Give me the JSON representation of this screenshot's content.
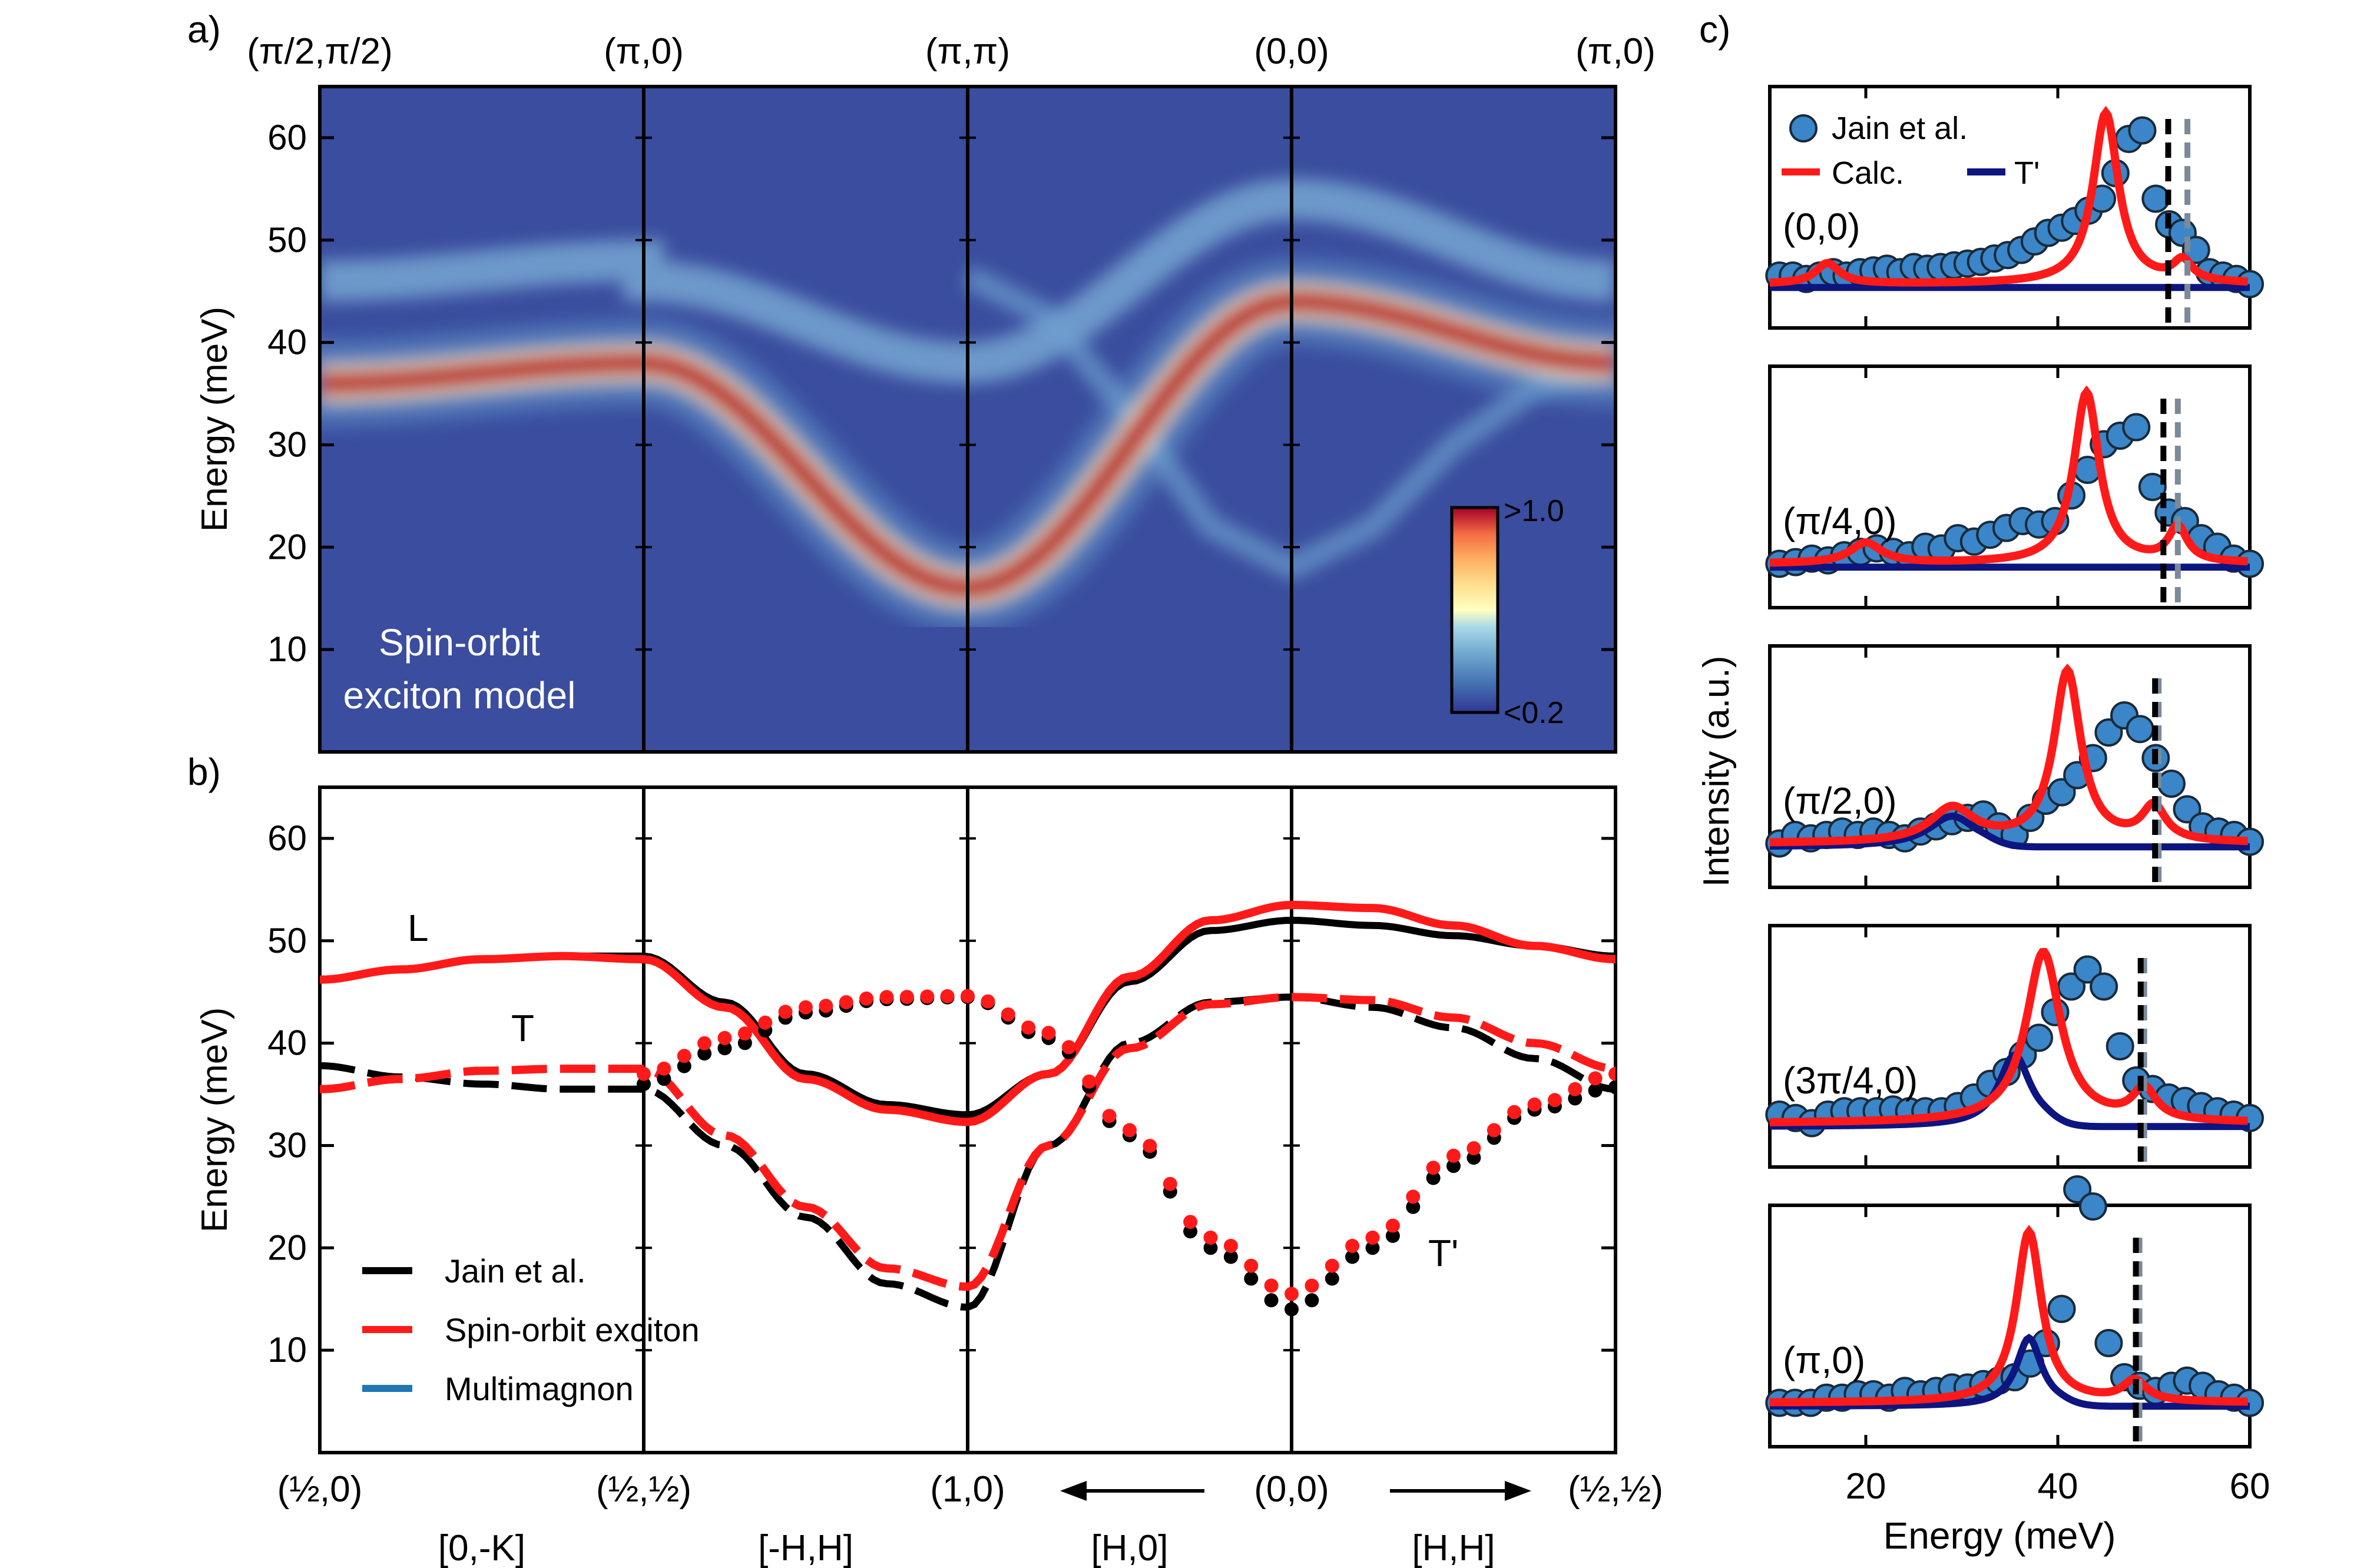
{
  "panel_labels": {
    "a": "a)",
    "b": "b)",
    "c": "c)"
  },
  "colors": {
    "jain": "#000000",
    "calc": "#ff1a1a",
    "multimagnon": "#1f77b4",
    "tprime": "#0d1580",
    "marker_fill": "#3a86c8",
    "dash_dark": "#000000",
    "dash_light": "#7a8a9a",
    "map_low": "#313695",
    "map_high": "#a50026"
  },
  "chart_data": [
    {
      "id": "a",
      "type": "heatmap",
      "ylabel": "Energy (meV)",
      "ylim": [
        0,
        65
      ],
      "yticks": [
        10,
        20,
        30,
        40,
        50,
        60
      ],
      "top_labels": [
        "(π/2,π/2)",
        "(π,0)",
        "(π,π)",
        "(0,0)",
        "(π,0)"
      ],
      "annotation": [
        "Spin-orbit",
        "exciton model"
      ],
      "colorbar": {
        "max_label": ">1.0",
        "min_label": "<0.2",
        "range": [
          0.2,
          1.0
        ]
      },
      "segments": [
        {
          "name": "(π/2,π/2)→(π,0)",
          "main_energy": [
            36,
            38
          ],
          "upper_energy": [
            46,
            48
          ]
        },
        {
          "name": "(π,0)→(π,π)",
          "main_energy": [
            38,
            16
          ],
          "upper_energy": [
            46,
            38
          ]
        },
        {
          "name": "(π,π)→(0,0)",
          "main_energy": [
            16,
            44
          ],
          "upper_energy": [
            38,
            54
          ]
        },
        {
          "name": "(0,0)→(π,0)",
          "main_energy": [
            44,
            38
          ],
          "upper_energy": [
            54,
            46
          ]
        }
      ]
    },
    {
      "id": "b",
      "type": "line",
      "ylabel": "Energy (meV)",
      "ylim": [
        0,
        65
      ],
      "yticks": [
        10,
        20,
        30,
        40,
        50,
        60
      ],
      "x_labels": [
        "(½,0)",
        "(½,½)",
        "(1,0)",
        "(0,0)",
        "(½,½)"
      ],
      "direction_labels": [
        "[0,-K]",
        "[-H,H]",
        "[H,0]",
        "[H,H]"
      ],
      "mode_labels": {
        "L": "L",
        "T": "T",
        "T'": "T'"
      },
      "legend": [
        {
          "name": "Jain et al.",
          "color": "#000000"
        },
        {
          "name": "Spin-orbit exciton",
          "color": "#ff1a1a"
        },
        {
          "name": "Multimagnon",
          "color": "#1f77b4"
        }
      ],
      "x": [
        0,
        0.25,
        0.5,
        0.75,
        1,
        1.25,
        1.5,
        1.75,
        2,
        2.25,
        2.5,
        2.75,
        3,
        3.25,
        3.5,
        3.75,
        4
      ],
      "series": [
        {
          "name": "Jain L",
          "style": "solid",
          "color": "#000000",
          "values": [
            46.2,
            47.2,
            48.2,
            48.5,
            48.5,
            44.0,
            37.0,
            34.0,
            33.0,
            37.0,
            46.0,
            51.0,
            52.0,
            51.5,
            50.5,
            49.5,
            48.5
          ]
        },
        {
          "name": "Exciton L",
          "style": "solid",
          "color": "#ff1a1a",
          "values": [
            46.2,
            47.2,
            48.2,
            48.5,
            48.2,
            43.5,
            36.5,
            33.5,
            32.3,
            37.0,
            46.5,
            52.0,
            53.5,
            53.2,
            51.5,
            49.5,
            48.2
          ]
        },
        {
          "name": "Jain T",
          "style": "dashed",
          "color": "#000000",
          "values": [
            37.8,
            36.7,
            36.0,
            35.5,
            35.5,
            30.0,
            23.0,
            16.5,
            14.2,
            30.0,
            40.0,
            44.0,
            44.5,
            43.5,
            41.5,
            38.5,
            35.5
          ]
        },
        {
          "name": "Exciton T",
          "style": "dashed",
          "color": "#ff1a1a",
          "values": [
            35.5,
            36.5,
            37.3,
            37.5,
            37.5,
            31.0,
            24.0,
            18.0,
            16.2,
            30.0,
            39.5,
            43.8,
            44.5,
            44.2,
            42.5,
            40.0,
            37.5
          ]
        },
        {
          "name": "Jain T'",
          "style": "dotted",
          "color": "#000000",
          "values": [
            null,
            null,
            null,
            null,
            36.0,
            39.5,
            43.0,
            44.3,
            44.5,
            40.5,
            31.0,
            20.0,
            14.0,
            20.0,
            28.0,
            33.5,
            35.7
          ]
        },
        {
          "name": "Exciton T'",
          "style": "dotted",
          "color": "#ff1a1a",
          "values": [
            null,
            null,
            null,
            null,
            37.0,
            40.5,
            43.5,
            44.5,
            44.6,
            41.0,
            31.5,
            21.0,
            15.5,
            21.0,
            29.0,
            34.0,
            37.0
          ]
        }
      ]
    },
    {
      "id": "c",
      "type": "scatter",
      "xlabel": "Energy (meV)",
      "ylabel": "Intensity (a.u.)",
      "xlim": [
        10,
        60
      ],
      "xticks": [
        20,
        40,
        60
      ],
      "legend": [
        {
          "name": "Jain et al.",
          "kind": "marker"
        },
        {
          "name": "Calc.",
          "kind": "line",
          "color": "#ff1a1a"
        },
        {
          "name": "T'",
          "kind": "line",
          "color": "#0d1580"
        }
      ],
      "panels": [
        {
          "label": "(0,0)",
          "dash_dark": 51.5,
          "dash_light": 53.5,
          "peaks": [
            {
              "e": 45,
              "a": 1.0,
              "w": 1.6
            },
            {
              "e": 16,
              "a": 0.12,
              "w": 1.5
            },
            {
              "e": 53,
              "a": 0.12,
              "w": 1.2
            }
          ],
          "tprime": null,
          "points": [
            0.1,
            0.1,
            0.08,
            0.1,
            0.12,
            0.1,
            0.12,
            0.13,
            0.14,
            0.12,
            0.15,
            0.14,
            0.15,
            0.16,
            0.17,
            0.18,
            0.2,
            0.22,
            0.25,
            0.3,
            0.35,
            0.38,
            0.42,
            0.48,
            0.55,
            0.7,
            0.9,
            0.95,
            0.55,
            0.4,
            0.35,
            0.25,
            0.12,
            0.1,
            0.08,
            0.05
          ]
        },
        {
          "label": "(π/4,0)",
          "dash_dark": 51.0,
          "dash_light": 52.5,
          "peaks": [
            {
              "e": 43,
              "a": 1.0,
              "w": 1.6
            },
            {
              "e": 20,
              "a": 0.12,
              "w": 2.0
            },
            {
              "e": 52.5,
              "a": 0.2,
              "w": 1.2
            }
          ],
          "tprime": null,
          "points": [
            0.05,
            0.06,
            0.08,
            0.07,
            0.1,
            0.12,
            0.14,
            0.12,
            0.1,
            0.15,
            0.14,
            0.2,
            0.18,
            0.22,
            0.26,
            0.3,
            0.28,
            0.3,
            0.45,
            0.6,
            0.75,
            0.8,
            0.85,
            0.5,
            0.35,
            0.3,
            0.2,
            0.15,
            0.08,
            0.05
          ]
        },
        {
          "label": "(π/2,0)",
          "dash_dark": 50.5,
          "dash_light": 50.5,
          "peaks": [
            {
              "e": 41,
              "a": 1.0,
              "w": 1.7
            },
            {
              "e": 29,
              "a": 0.2,
              "w": 2.8
            },
            {
              "e": 50,
              "a": 0.2,
              "w": 1.5
            }
          ],
          "tprime": {
            "e": 29,
            "a": 0.18,
            "w": 3.0
          },
          "points": [
            0.05,
            0.1,
            0.08,
            0.1,
            0.12,
            0.1,
            0.12,
            0.1,
            0.08,
            0.12,
            0.15,
            0.18,
            0.2,
            0.22,
            0.15,
            0.1,
            0.2,
            0.3,
            0.35,
            0.45,
            0.55,
            0.7,
            0.8,
            0.72,
            0.55,
            0.4,
            0.25,
            0.15,
            0.12,
            0.1,
            0.06
          ]
        },
        {
          "label": "(3π/4,0)",
          "dash_dark": 49.0,
          "dash_light": 49.0,
          "peaks": [
            {
              "e": 38.5,
              "a": 1.0,
              "w": 2.2
            },
            {
              "e": 49,
              "a": 0.18,
              "w": 1.5
            }
          ],
          "tprime": {
            "e": 35.5,
            "a": 0.42,
            "w": 2.0
          },
          "points": [
            0.1,
            0.08,
            0.05,
            0.1,
            0.12,
            0.12,
            0.12,
            0.13,
            0.12,
            0.12,
            0.12,
            0.15,
            0.2,
            0.28,
            0.35,
            0.45,
            0.55,
            0.7,
            0.85,
            0.95,
            0.85,
            0.5,
            0.3,
            0.25,
            0.2,
            0.18,
            0.15,
            0.12,
            0.1,
            0.08
          ]
        },
        {
          "label": "(π,0)",
          "dash_dark": 48.5,
          "dash_light": 48.5,
          "peaks": [
            {
              "e": 37,
              "a": 1.0,
              "w": 1.6
            },
            {
              "e": 48,
              "a": 0.12,
              "w": 1.5
            }
          ],
          "tprime": {
            "e": 37,
            "a": 0.4,
            "w": 1.6
          },
          "points": [
            0.05,
            0.05,
            0.05,
            0.08,
            0.08,
            0.1,
            0.1,
            0.08,
            0.12,
            0.1,
            0.12,
            0.14,
            0.14,
            0.16,
            0.18,
            0.2,
            0.28,
            0.4,
            0.6,
            1.3,
            1.2,
            0.4,
            0.2,
            0.15,
            0.12,
            0.15,
            0.18,
            0.15,
            0.1,
            0.08,
            0.05
          ]
        }
      ]
    }
  ]
}
